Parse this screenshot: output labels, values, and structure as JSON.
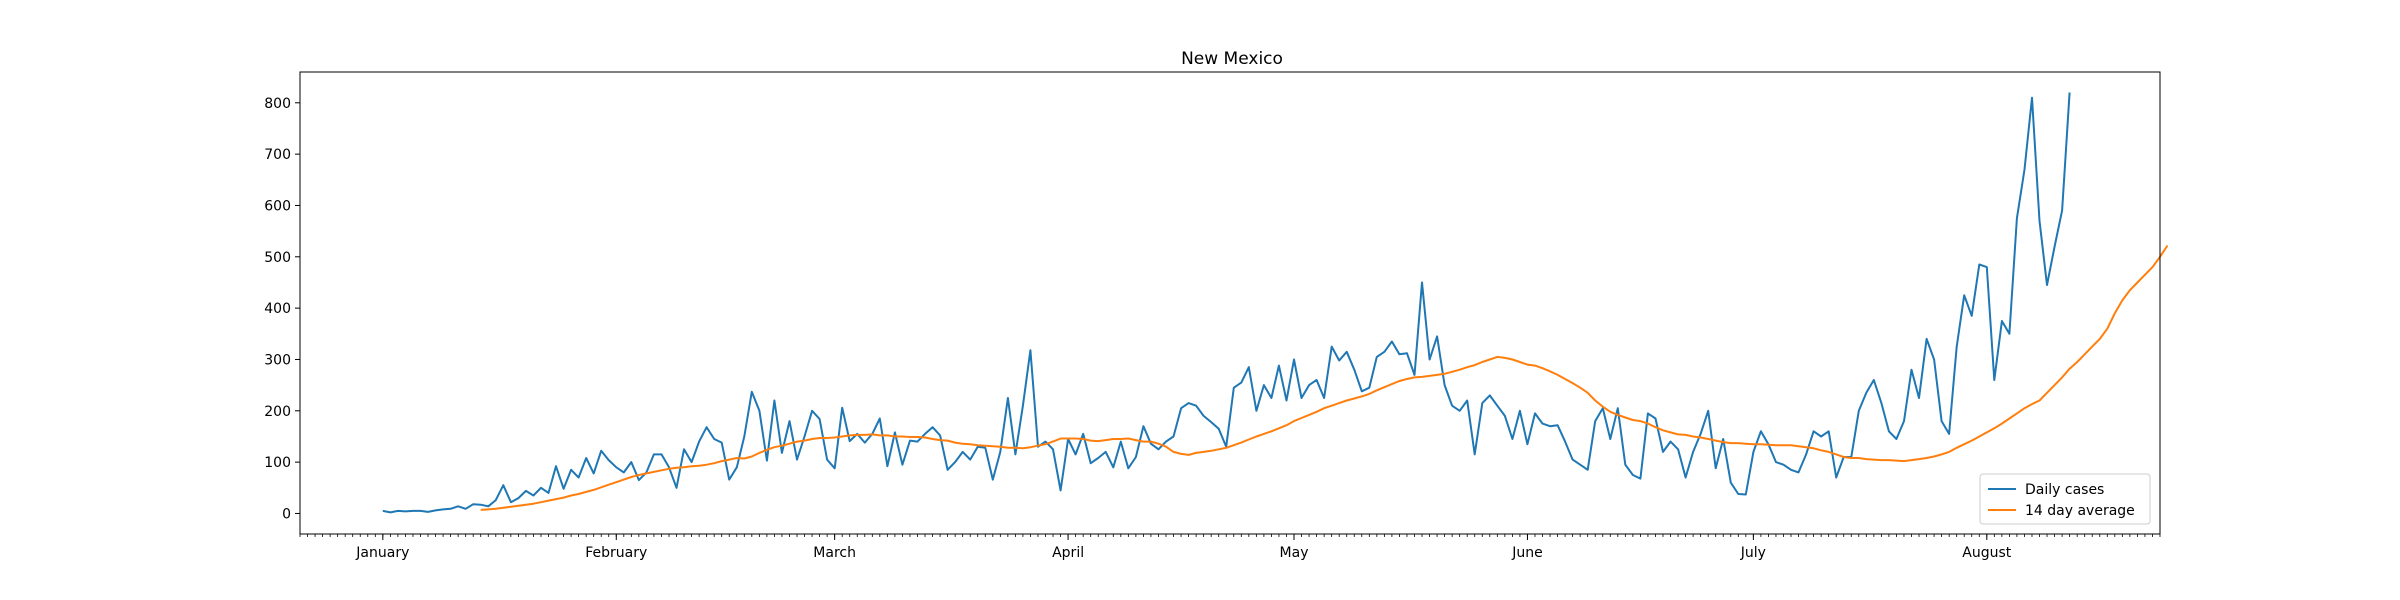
{
  "chart_data": {
    "type": "line",
    "title": "New Mexico",
    "xlabel": "",
    "ylabel": "",
    "ylim": [
      -40,
      860
    ],
    "yticks": [
      0,
      100,
      200,
      300,
      400,
      500,
      600,
      700,
      800
    ],
    "xticks": [
      {
        "label": "January",
        "day": 0
      },
      {
        "label": "February",
        "day": 31
      },
      {
        "label": "March",
        "day": 60
      },
      {
        "label": "April",
        "day": 91
      },
      {
        "label": "May",
        "day": 121
      },
      {
        "label": "June",
        "day": 152
      },
      {
        "label": "July",
        "day": 182
      },
      {
        "label": "August",
        "day": 213
      }
    ],
    "xlim": [
      -11,
      236
    ],
    "legend": {
      "position": "lower-right"
    },
    "series": [
      {
        "name": "Daily cases",
        "color": "#1f77b4",
        "start_day": 0,
        "values": [
          5,
          2,
          5,
          4,
          5,
          5,
          3,
          6,
          8,
          9,
          14,
          9,
          18,
          17,
          14,
          26,
          55,
          22,
          30,
          44,
          35,
          50,
          40,
          92,
          48,
          85,
          70,
          108,
          78,
          122,
          104,
          90,
          80,
          100,
          65,
          80,
          115,
          115,
          90,
          50,
          125,
          100,
          140,
          168,
          145,
          138,
          66,
          90,
          150,
          237,
          200,
          103,
          220,
          118,
          180,
          105,
          150,
          200,
          184,
          105,
          88,
          206,
          141,
          155,
          138,
          155,
          185,
          92,
          158,
          95,
          142,
          140,
          155,
          168,
          152,
          85,
          100,
          120,
          105,
          130,
          128,
          66,
          120,
          225,
          115,
          210,
          318,
          130,
          140,
          125,
          45,
          145,
          115,
          155,
          98,
          108,
          120,
          90,
          140,
          88,
          110,
          170,
          136,
          125,
          140,
          150,
          205,
          215,
          210,
          190,
          178,
          165,
          130,
          245,
          255,
          285,
          200,
          250,
          225,
          288,
          220,
          300,
          225,
          250,
          260,
          225,
          325,
          298,
          315,
          280,
          238,
          245,
          305,
          315,
          335,
          310,
          312,
          270,
          450,
          300,
          345,
          250,
          210,
          200,
          220,
          115,
          215,
          230,
          210,
          190,
          145,
          200,
          135,
          195,
          175,
          170,
          172,
          140,
          105,
          95,
          85,
          180,
          205,
          145,
          205,
          95,
          75,
          68,
          195,
          185,
          120,
          140,
          125,
          70,
          120,
          155,
          200,
          88,
          145,
          60,
          38,
          37,
          120,
          160,
          135,
          100,
          95,
          85,
          80,
          115,
          160,
          150,
          160,
          70,
          110,
          110,
          200,
          235,
          260,
          215,
          160,
          145,
          180,
          280,
          225,
          340,
          300,
          180,
          155,
          325,
          425,
          385,
          485,
          480,
          260,
          375,
          350,
          575,
          670,
          810,
          570,
          445,
          520,
          590,
          820
        ]
      },
      {
        "name": "14 day average",
        "color": "#ff7f0e",
        "start_day": 13,
        "values": [
          7,
          8,
          9,
          11,
          13,
          15,
          17,
          19,
          22,
          25,
          28,
          31,
          35,
          38,
          42,
          46,
          51,
          56,
          61,
          66,
          71,
          75,
          78,
          81,
          84,
          87,
          89,
          90,
          92,
          93,
          95,
          98,
          102,
          105,
          108,
          107,
          111,
          118,
          124,
          129,
          132,
          136,
          140,
          142,
          145,
          147,
          147,
          148,
          150,
          152,
          153,
          153,
          154,
          152,
          152,
          150,
          150,
          149,
          149,
          148,
          145,
          143,
          142,
          138,
          136,
          135,
          133,
          132,
          131,
          130,
          128,
          128,
          127,
          129,
          132,
          135,
          140,
          146,
          146,
          146,
          145,
          142,
          141,
          143,
          145,
          145,
          146,
          143,
          140,
          140,
          136,
          130,
          120,
          116,
          114,
          118,
          120,
          122,
          125,
          128,
          133,
          138,
          144,
          150,
          155,
          160,
          166,
          172,
          180,
          186,
          192,
          198,
          205,
          210,
          215,
          220,
          224,
          228,
          233,
          240,
          246,
          252,
          258,
          262,
          265,
          266,
          268,
          270,
          272,
          276,
          280,
          285,
          289,
          295,
          300,
          305,
          303,
          300,
          295,
          290,
          288,
          283,
          277,
          270,
          262,
          254,
          245,
          235,
          220,
          208,
          198,
          192,
          187,
          182,
          180,
          175,
          168,
          162,
          158,
          154,
          153,
          150,
          148,
          145,
          142,
          139,
          137,
          137,
          136,
          135,
          135,
          134,
          133,
          133,
          133,
          131,
          129,
          127,
          123,
          120,
          115,
          110,
          108,
          108,
          106,
          105,
          104,
          104,
          103,
          102,
          104,
          106,
          108,
          111,
          115,
          120,
          128,
          135,
          142,
          150,
          158,
          166,
          175,
          185,
          195,
          205,
          213,
          220,
          235,
          250,
          265,
          282,
          295,
          310,
          325,
          340,
          360,
          390,
          415,
          435,
          450,
          465,
          480,
          500,
          522
        ]
      }
    ]
  }
}
